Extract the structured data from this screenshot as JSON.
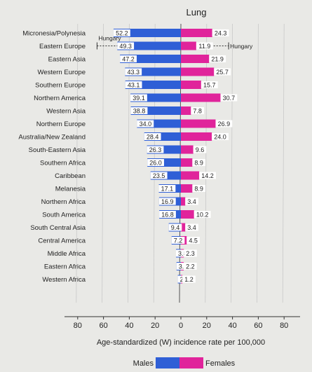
{
  "chart_data": {
    "type": "bar",
    "title": "Lung",
    "xlabel": "Age-standardized (W) incidence rate per 100,000",
    "xlim": [
      -80,
      80
    ],
    "xticks": [
      -80,
      -60,
      -40,
      -20,
      0,
      20,
      40,
      60,
      80
    ],
    "xtick_labels": [
      "80",
      "60",
      "40",
      "20",
      "0",
      "20",
      "40",
      "60",
      "80"
    ],
    "grid": true,
    "legend_position": "bottom-center",
    "categories": [
      "Micronesia/Polynesia",
      "Eastern Europe",
      "Eastern Asia",
      "Western Europe",
      "Southern Europe",
      "Northern America",
      "Western Asia",
      "Northern Europe",
      "Australia/New Zealand",
      "South-Eastern Asia",
      "Southern Africa",
      "Caribbean",
      "Melanesia",
      "Northern Africa",
      "South America",
      "South Central Asia",
      "Central America",
      "Middle Africa",
      "Eastern Africa",
      "Western Africa"
    ],
    "series": [
      {
        "name": "Males",
        "color": "#2f5fd6",
        "direction": "left",
        "values": [
          52.2,
          49.3,
          47.2,
          43.3,
          43.1,
          39.1,
          38.8,
          34.0,
          28.4,
          26.3,
          26.0,
          23.5,
          17.1,
          16.9,
          16.8,
          9.4,
          7.2,
          3.8,
          3.4,
          2.4
        ]
      },
      {
        "name": "Females",
        "color": "#e0249b",
        "direction": "right",
        "values": [
          24.3,
          11.9,
          21.9,
          25.7,
          15.7,
          30.7,
          7.8,
          26.9,
          24.0,
          9.6,
          8.9,
          14.2,
          8.9,
          3.4,
          10.2,
          3.4,
          4.5,
          2.3,
          2.2,
          1.2
        ]
      }
    ],
    "value_labels": {
      "males": [
        "52.2",
        "49.3",
        "47.2",
        "43.3",
        "43.1",
        "39.1",
        "38.8",
        "34.0",
        "28.4",
        "26.3",
        "26.0",
        "23.5",
        "17.1",
        "16.9",
        "16.8",
        "9.4",
        "7.2",
        "3.8",
        "3.4",
        "2.4"
      ],
      "females": [
        "24.3",
        "11.9",
        "21.9",
        "25.7",
        "15.7",
        "30.7",
        "7.8",
        "26.9",
        "24.0",
        "9.6",
        "8.9",
        "14.2",
        "8.9",
        "3.4",
        "10.2",
        "3.4",
        "4.5",
        "2.3",
        "2.2",
        "1.2"
      ]
    },
    "annotations": [
      {
        "text": "Hungary",
        "series": "Males",
        "category": "Eastern Europe",
        "value": 65.0
      },
      {
        "text": "Hungary",
        "series": "Females",
        "category": "Eastern Europe",
        "value": 37.0
      }
    ]
  }
}
